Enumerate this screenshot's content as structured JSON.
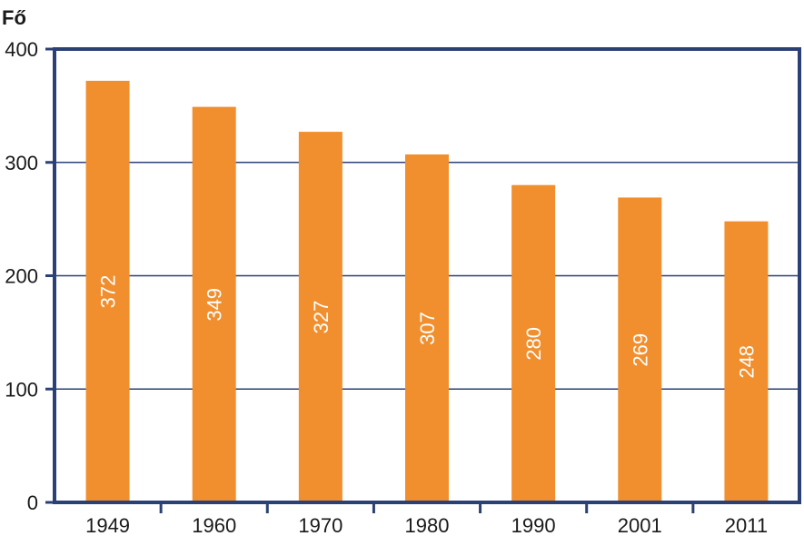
{
  "chart_data": {
    "type": "bar",
    "ylabel": "Fő",
    "categories": [
      "1949",
      "1960",
      "1970",
      "1980",
      "1990",
      "2001",
      "2011"
    ],
    "values": [
      372,
      349,
      327,
      307,
      280,
      269,
      248
    ],
    "ylim": [
      0,
      400
    ],
    "yticks": [
      "0",
      "100",
      "200",
      "300",
      "400"
    ],
    "grid": true,
    "colors": {
      "bar": "#f18f2e",
      "frame": "#2b4075",
      "label": "#ffffff"
    }
  }
}
